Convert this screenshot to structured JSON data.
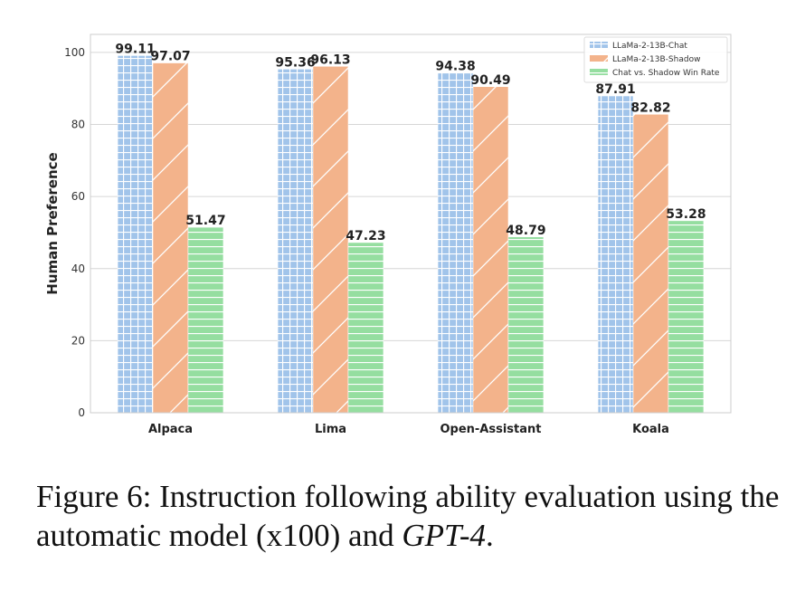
{
  "caption": {
    "label": "Figure 6:",
    "text": "Instruction following ability evaluation using the automatic model (x100) and",
    "italic": "GPT-4",
    "end": "."
  },
  "chart_data": {
    "type": "bar",
    "ylabel": "Human Preference",
    "ylim": [
      0,
      105
    ],
    "yticks": [
      0,
      20,
      40,
      60,
      80,
      100
    ],
    "categories": [
      "Alpaca",
      "Lima",
      "Open-Assistant",
      "Koala"
    ],
    "grid": true,
    "legend_position": "top-right",
    "series": [
      {
        "name": "LLaMa-2-13B-Chat",
        "values": [
          99.11,
          95.36,
          94.38,
          87.91
        ],
        "labels": [
          "99.11",
          "95.36",
          "94.38",
          "87.91"
        ],
        "color": "#a1c4ea",
        "hatch": "grid"
      },
      {
        "name": "LLaMa-2-13B-Shadow",
        "values": [
          97.07,
          96.13,
          90.49,
          82.82
        ],
        "labels": [
          "97.07",
          "96.13",
          "90.49",
          "82.82"
        ],
        "color": "#f3b38b",
        "hatch": "diagonal"
      },
      {
        "name": "Chat vs. Shadow Win Rate",
        "values": [
          51.47,
          47.23,
          48.79,
          53.28
        ],
        "labels": [
          "51.47",
          "47.23",
          "48.79",
          "53.28"
        ],
        "color": "#95dea0",
        "hatch": "horizontal"
      }
    ]
  }
}
